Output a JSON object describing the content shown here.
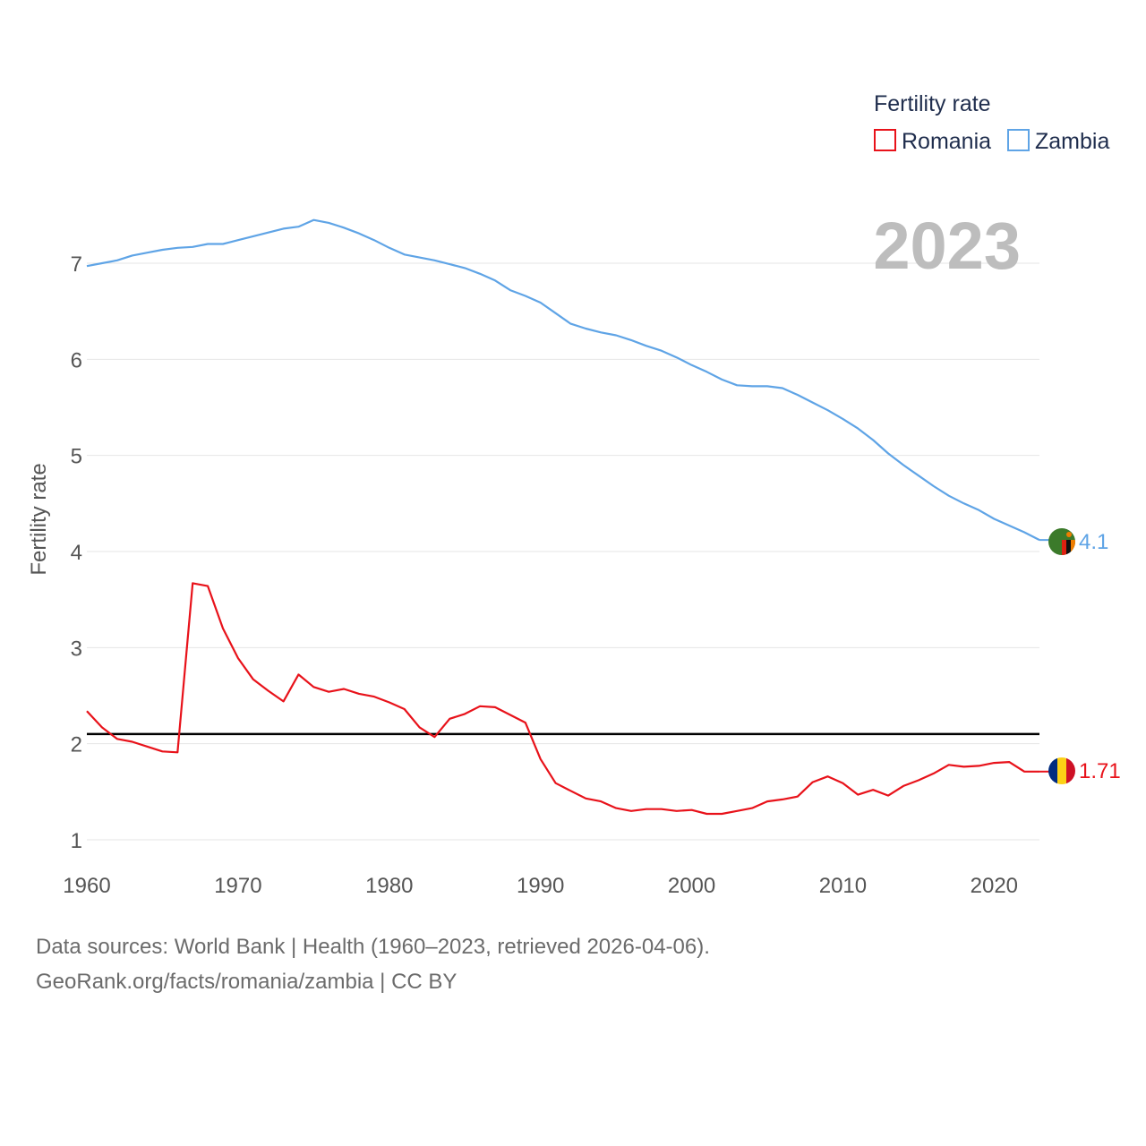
{
  "chart_data": {
    "type": "line",
    "title": "",
    "xlabel": "",
    "ylabel": "Fertility rate",
    "xlim": [
      1960,
      2023
    ],
    "ylim": [
      0.8,
      7.8
    ],
    "x_ticks": [
      1960,
      1970,
      1980,
      1990,
      2000,
      2010,
      2020
    ],
    "y_ticks": [
      1,
      2,
      3,
      4,
      5,
      6,
      7
    ],
    "grid": true,
    "legend_title": "Fertility rate",
    "legend_position": "top-right",
    "year_label": "2023",
    "x": [
      1960,
      1961,
      1962,
      1963,
      1964,
      1965,
      1966,
      1967,
      1968,
      1969,
      1970,
      1971,
      1972,
      1973,
      1974,
      1975,
      1976,
      1977,
      1978,
      1979,
      1980,
      1981,
      1982,
      1983,
      1984,
      1985,
      1986,
      1987,
      1988,
      1989,
      1990,
      1991,
      1992,
      1993,
      1994,
      1995,
      1996,
      1997,
      1998,
      1999,
      2000,
      2001,
      2002,
      2003,
      2004,
      2005,
      2006,
      2007,
      2008,
      2009,
      2010,
      2011,
      2012,
      2013,
      2014,
      2015,
      2016,
      2017,
      2018,
      2019,
      2020,
      2021,
      2022,
      2023
    ],
    "series": [
      {
        "name": "Zambia",
        "color": "#5fa4e6",
        "end_label": "4.1",
        "values": [
          6.97,
          7.0,
          7.03,
          7.08,
          7.11,
          7.14,
          7.16,
          7.17,
          7.2,
          7.2,
          7.24,
          7.28,
          7.32,
          7.36,
          7.38,
          7.45,
          7.42,
          7.37,
          7.31,
          7.24,
          7.16,
          7.09,
          7.06,
          7.03,
          6.99,
          6.95,
          6.89,
          6.82,
          6.72,
          6.66,
          6.59,
          6.48,
          6.37,
          6.32,
          6.28,
          6.25,
          6.2,
          6.14,
          6.09,
          6.02,
          5.94,
          5.87,
          5.79,
          5.73,
          5.72,
          5.72,
          5.7,
          5.63,
          5.55,
          5.47,
          5.38,
          5.28,
          5.16,
          5.02,
          4.9,
          4.79,
          4.68,
          4.58,
          4.5,
          4.43,
          4.34,
          4.27,
          4.2,
          4.12
        ]
      },
      {
        "name": "Romania",
        "color": "#e8121a",
        "end_label": "1.71",
        "values": [
          2.34,
          2.17,
          2.05,
          2.02,
          1.97,
          1.92,
          1.91,
          3.67,
          3.64,
          3.2,
          2.89,
          2.67,
          2.55,
          2.44,
          2.72,
          2.59,
          2.54,
          2.57,
          2.52,
          2.49,
          2.43,
          2.36,
          2.17,
          2.07,
          2.26,
          2.31,
          2.39,
          2.38,
          2.3,
          2.22,
          1.84,
          1.59,
          1.51,
          1.43,
          1.4,
          1.33,
          1.3,
          1.32,
          1.32,
          1.3,
          1.31,
          1.27,
          1.27,
          1.3,
          1.33,
          1.4,
          1.42,
          1.45,
          1.6,
          1.66,
          1.59,
          1.47,
          1.52,
          1.46,
          1.56,
          1.62,
          1.69,
          1.78,
          1.76,
          1.77,
          1.8,
          1.81,
          1.71,
          1.71
        ]
      }
    ],
    "reference_line": {
      "value": 2.1,
      "color": "#000000"
    }
  },
  "flags": {
    "zambia": "zambia-flag-icon",
    "romania": "romania-flag-icon"
  },
  "footer": {
    "line1": "Data sources: World Bank | Health (1960–2023, retrieved 2026-04-06).",
    "line2": "GeoRank.org/facts/romania/zambia | CC BY"
  }
}
